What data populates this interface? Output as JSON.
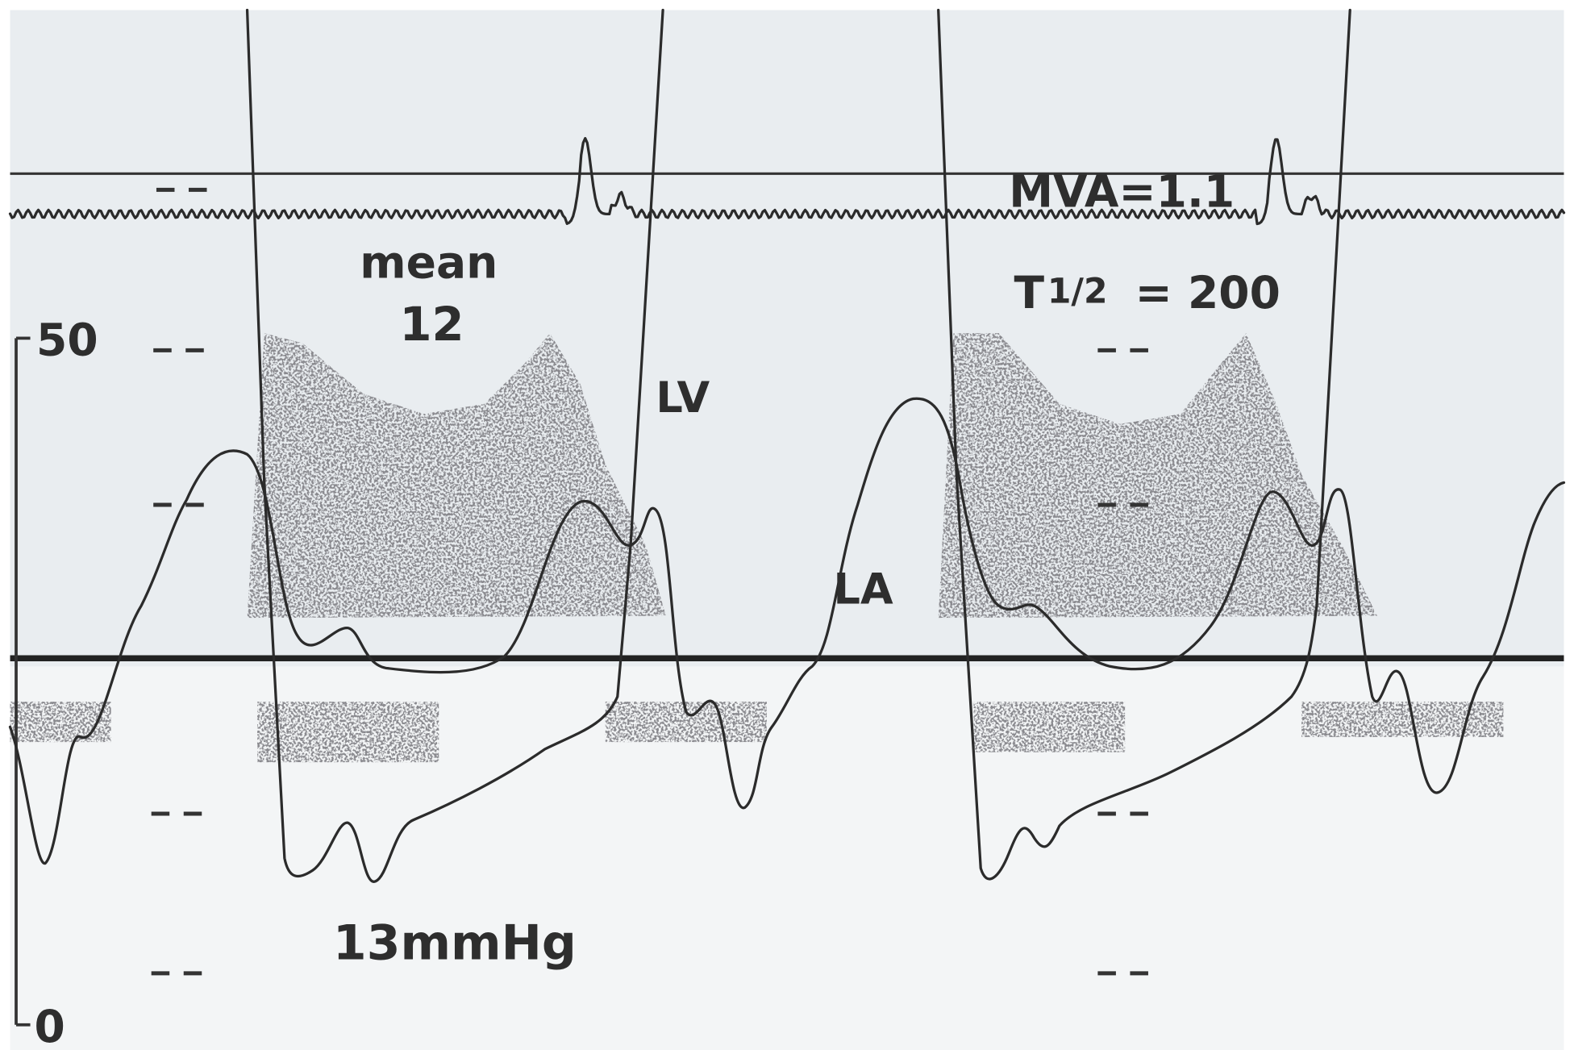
{
  "annotations": {
    "mean_label": "mean",
    "mean_value": "12",
    "lv": "LV",
    "la": "LA",
    "gradient": "13mmHg",
    "mva": "MVA=1.1",
    "t_half": {
      "t": "T",
      "fraction": "1/2",
      "value": "= 200"
    }
  },
  "scale": {
    "top": "50",
    "bottom": "0"
  }
}
